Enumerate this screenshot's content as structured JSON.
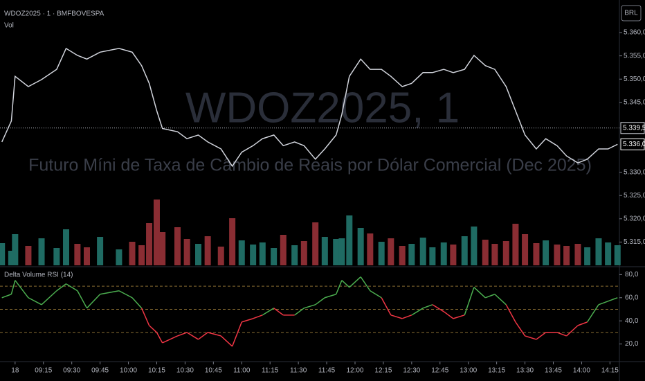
{
  "header": {
    "symbol": "WDOZ2025 · 1 · BMFBOVESPA",
    "volume_label": "Vol",
    "currency": "BRL"
  },
  "watermark": {
    "title": "WDOZ2025, 1",
    "subtitle": "Futuro Míni de Taxa de Câmbio de Reais por Dólar Comercial (Dec 2025)"
  },
  "chart_data": [
    {
      "type": "line",
      "color": "#d1d4dc",
      "x": [
        -7,
        -2,
        0,
        7,
        14,
        22,
        27,
        33,
        38,
        45,
        55,
        62,
        67,
        71,
        75,
        78,
        86,
        91,
        97,
        102,
        109,
        115,
        120,
        126,
        131,
        137,
        142,
        148,
        153,
        159,
        164,
        170,
        173,
        177,
        183,
        188,
        194,
        199,
        205,
        210,
        216,
        221,
        227,
        232,
        238,
        243,
        249,
        254,
        260,
        265,
        270,
        276,
        281,
        287,
        292,
        298,
        303,
        309,
        314,
        319
      ],
      "values": [
        5336.5,
        5341.0,
        5350.6,
        5348.4,
        5349.9,
        5352.1,
        5356.6,
        5355.1,
        5354.3,
        5355.8,
        5356.6,
        5355.8,
        5352.9,
        5349.1,
        5343.2,
        5339.4,
        5338.7,
        5337.2,
        5338.0,
        5336.5,
        5335.0,
        5331.3,
        5334.3,
        5335.7,
        5337.2,
        5338.0,
        5335.7,
        5336.5,
        5335.7,
        5332.8,
        5335.0,
        5338.0,
        5342.4,
        5350.6,
        5354.3,
        5352.1,
        5352.1,
        5350.6,
        5348.4,
        5349.1,
        5351.4,
        5351.4,
        5352.1,
        5351.4,
        5352.1,
        5355.1,
        5352.9,
        5352.1,
        5348.4,
        5343.2,
        5338.0,
        5335.0,
        5337.2,
        5335.7,
        5333.5,
        5332.0,
        5332.8,
        5335.0,
        5335.0,
        5336.0
      ],
      "xlim": [
        -8,
        320
      ],
      "ylim": [
        5310,
        5367
      ],
      "yticks": [
        {
          "value": 5315,
          "label": "5.315,0"
        },
        {
          "value": 5320,
          "label": "5.320,0"
        },
        {
          "value": 5325,
          "label": "5.325,0"
        },
        {
          "value": 5330,
          "label": "5.330,0"
        },
        {
          "value": 5345,
          "label": "5.345,0"
        },
        {
          "value": 5350,
          "label": "5.350,0"
        },
        {
          "value": 5355,
          "label": "5.355,0"
        },
        {
          "value": 5360,
          "label": "5.360,0"
        }
      ],
      "reference_line": {
        "value": 5339.5,
        "label": "5.339,5"
      },
      "last_price": {
        "value": 5336.0,
        "label": "5.336,0"
      }
    },
    {
      "type": "bar",
      "up_color": "#1f6b63",
      "down_color": "#8a2d33",
      "x": [
        -7,
        -2,
        0,
        7,
        14,
        22,
        27,
        33,
        38,
        45,
        55,
        62,
        67,
        71,
        75,
        78,
        86,
        91,
        97,
        102,
        109,
        115,
        120,
        126,
        131,
        137,
        142,
        148,
        153,
        159,
        164,
        170,
        173,
        177,
        183,
        188,
        194,
        199,
        205,
        210,
        216,
        221,
        227,
        232,
        238,
        243,
        249,
        254,
        260,
        265,
        270,
        276,
        281,
        287,
        292,
        298,
        303,
        309,
        314,
        319
      ],
      "values": [
        3200,
        2100,
        4500,
        2800,
        3900,
        2500,
        5200,
        3100,
        2600,
        4100,
        2300,
        3400,
        2900,
        6100,
        9500,
        4800,
        5500,
        3800,
        3100,
        4200,
        2700,
        6800,
        3600,
        3000,
        3300,
        2500,
        4400,
        2900,
        3500,
        6200,
        4100,
        3800,
        3900,
        7200,
        5400,
        4600,
        3400,
        3900,
        2800,
        3100,
        4000,
        2600,
        3300,
        3000,
        4200,
        5600,
        3700,
        3100,
        3500,
        6000,
        4500,
        3200,
        3600,
        3000,
        2800,
        3100,
        2600,
        3900,
        3300,
        2900
      ],
      "xlim": [
        -8,
        320
      ]
    },
    {
      "type": "line",
      "title": "Delta Volume RSI (14)",
      "up_color": "#4caf50",
      "down_color": "#f23645",
      "level_color": "#c8a04a",
      "x": [
        -7,
        -2,
        0,
        7,
        14,
        22,
        27,
        33,
        38,
        45,
        55,
        62,
        67,
        71,
        75,
        78,
        86,
        91,
        97,
        102,
        109,
        115,
        120,
        126,
        131,
        137,
        142,
        148,
        153,
        159,
        164,
        170,
        173,
        177,
        183,
        188,
        194,
        199,
        205,
        210,
        216,
        221,
        227,
        232,
        238,
        243,
        249,
        254,
        260,
        265,
        270,
        276,
        281,
        287,
        292,
        298,
        303,
        309,
        314,
        319
      ],
      "values": [
        60,
        63,
        75,
        60,
        54,
        66,
        72,
        66,
        51,
        63,
        66,
        60,
        51,
        36,
        30,
        21,
        27,
        30,
        24,
        30,
        27,
        18,
        39,
        42,
        45,
        51,
        45,
        45,
        51,
        54,
        60,
        63,
        75,
        69,
        78,
        66,
        60,
        45,
        42,
        45,
        51,
        54,
        48,
        42,
        45,
        69,
        60,
        63,
        54,
        39,
        27,
        24,
        30,
        30,
        27,
        36,
        39,
        54,
        57,
        60
      ],
      "levels": [
        30,
        50,
        70
      ],
      "xlim": [
        -8,
        320
      ],
      "ylim": [
        6,
        85
      ],
      "yticks": [
        {
          "value": 20,
          "label": "20,0"
        },
        {
          "value": 40,
          "label": "40,0"
        },
        {
          "value": 60,
          "label": "60,0"
        },
        {
          "value": 80,
          "label": "80,0"
        }
      ],
      "xticks": [
        {
          "value": 0,
          "label": "18"
        },
        {
          "value": 15,
          "label": "09:15"
        },
        {
          "value": 30,
          "label": "09:30"
        },
        {
          "value": 45,
          "label": "09:45"
        },
        {
          "value": 60,
          "label": "10:00"
        },
        {
          "value": 75,
          "label": "10:15"
        },
        {
          "value": 90,
          "label": "10:30"
        },
        {
          "value": 105,
          "label": "10:45"
        },
        {
          "value": 120,
          "label": "11:00"
        },
        {
          "value": 135,
          "label": "11:15"
        },
        {
          "value": 150,
          "label": "11:30"
        },
        {
          "value": 165,
          "label": "11:45"
        },
        {
          "value": 180,
          "label": "12:00"
        },
        {
          "value": 195,
          "label": "12:15"
        },
        {
          "value": 210,
          "label": "12:30"
        },
        {
          "value": 225,
          "label": "12:45"
        },
        {
          "value": 240,
          "label": "13:00"
        },
        {
          "value": 255,
          "label": "13:15"
        },
        {
          "value": 270,
          "label": "13:30"
        },
        {
          "value": 285,
          "label": "13:45"
        },
        {
          "value": 300,
          "label": "14:00"
        },
        {
          "value": 315,
          "label": "14:15"
        }
      ]
    }
  ]
}
